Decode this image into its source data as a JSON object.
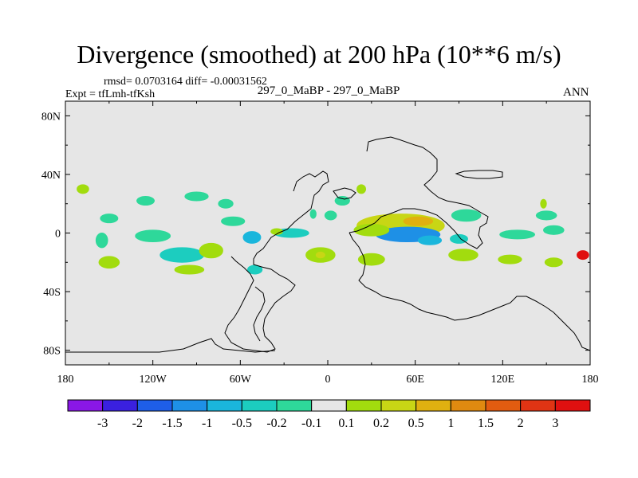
{
  "header": {
    "title": "Divergence (smoothed) at 200 hPa (10**6 m/s)",
    "stats": "rmsd= 0.0703164 diff= -0.00031562",
    "left_label": "Expt = tfLmh-tfKsh",
    "center_label": "297_0_MaBP - 297_0_MaBP",
    "right_label": "ANN"
  },
  "chart_data": {
    "type": "heatmap",
    "title": "Divergence (smoothed) at 200 hPa (10**6 m/s)",
    "projection": "cylindrical equidistant",
    "x_range": [
      -180,
      180
    ],
    "y_range": [
      -90,
      90
    ],
    "x_ticks": [
      {
        "value": -180,
        "label": "180"
      },
      {
        "value": -120,
        "label": "120W"
      },
      {
        "value": -60,
        "label": "60W"
      },
      {
        "value": 0,
        "label": "0"
      },
      {
        "value": 60,
        "label": "60E"
      },
      {
        "value": 120,
        "label": "120E"
      },
      {
        "value": 180,
        "label": "180"
      }
    ],
    "y_ticks": [
      {
        "value": 80,
        "label": "80N"
      },
      {
        "value": 40,
        "label": "40N"
      },
      {
        "value": 0,
        "label": "0"
      },
      {
        "value": -40,
        "label": "40S"
      },
      {
        "value": -80,
        "label": "80S"
      }
    ],
    "background_color": "#e6e6e6",
    "colorbar": {
      "boundaries": [
        "-3",
        "-2",
        "-1.5",
        "-1",
        "-0.5",
        "-0.2",
        "-0.1",
        "0.1",
        "0.2",
        "0.5",
        "1",
        "1.5",
        "2",
        "3"
      ],
      "colors": [
        "#8a17e6",
        "#3a20e0",
        "#1e5ee8",
        "#1e90e6",
        "#1ab6dc",
        "#1ccdbf",
        "#2ed89a",
        "#e6e6e6",
        "#a2dc0e",
        "#c8d615",
        "#e0b010",
        "#e08a10",
        "#e25c10",
        "#e03414",
        "#e01010"
      ]
    },
    "regions": [
      {
        "name": "central-indian-positive",
        "lon": 50,
        "lat": 5,
        "rlon": 30,
        "rlat": 8,
        "bin": 9
      },
      {
        "name": "indian-core-orange",
        "lon": 62,
        "lat": 8,
        "rlon": 10,
        "rlat": 3,
        "bin": 10
      },
      {
        "name": "indian-negative-core",
        "lon": 55,
        "lat": -1,
        "rlon": 22,
        "rlat": 5,
        "bin": 3
      },
      {
        "name": "indian-negative-east",
        "lon": 70,
        "lat": -5,
        "rlon": 8,
        "rlat": 3,
        "bin": 4
      },
      {
        "name": "africa-east-positive",
        "lon": 30,
        "lat": 2,
        "rlon": 12,
        "rlat": 4,
        "bin": 8
      },
      {
        "name": "east-africa-positive-south",
        "lon": -5,
        "lat": -15,
        "rlon": 10,
        "rlat": 5,
        "bin": 8
      },
      {
        "name": "africa-south-green",
        "lon": 30,
        "lat": -18,
        "rlon": 9,
        "rlat": 4,
        "bin": 8
      },
      {
        "name": "africa-orange-dot",
        "lon": -5,
        "lat": -15,
        "rlon": 3,
        "rlat": 2,
        "bin": 9
      },
      {
        "name": "atlantic-teal",
        "lon": -25,
        "lat": 0,
        "rlon": 12,
        "rlat": 3,
        "bin": 5
      },
      {
        "name": "north-africa-teal",
        "lon": 10,
        "lat": 22,
        "rlon": 5,
        "rlat": 3,
        "bin": 6
      },
      {
        "name": "mediterranean-green",
        "lon": 23,
        "lat": 30,
        "rlon": 3,
        "rlat": 3,
        "bin": 8
      },
      {
        "name": "north-indian-teal",
        "lon": 2,
        "lat": 12,
        "rlon": 4,
        "rlat": 3,
        "bin": 6
      },
      {
        "name": "pacific-west-teal",
        "lon": 95,
        "lat": 12,
        "rlon": 10,
        "rlat": 4,
        "bin": 6
      },
      {
        "name": "maritime-teal",
        "lon": 90,
        "lat": -4,
        "rlon": 6,
        "rlat": 3,
        "bin": 5
      },
      {
        "name": "indonesia-green",
        "lon": 93,
        "lat": -15,
        "rlon": 10,
        "rlat": 4,
        "bin": 8
      },
      {
        "name": "pacific-teal-1",
        "lon": 130,
        "lat": -1,
        "rlon": 12,
        "rlat": 3,
        "bin": 6
      },
      {
        "name": "pacific-teal-2",
        "lon": 150,
        "lat": 12,
        "rlon": 7,
        "rlat": 3,
        "bin": 6
      },
      {
        "name": "pacific-teal-3",
        "lon": 155,
        "lat": 2,
        "rlon": 7,
        "rlat": 3,
        "bin": 6
      },
      {
        "name": "dateline-red",
        "lon": 175,
        "lat": -15,
        "rlon": 4,
        "rlat": 3,
        "bin": 14
      },
      {
        "name": "pacific-green-se",
        "lon": 125,
        "lat": -18,
        "rlon": 8,
        "rlat": 3,
        "bin": 8
      },
      {
        "name": "pacific-green-far",
        "lon": 155,
        "lat": -20,
        "rlon": 6,
        "rlat": 3,
        "bin": 8
      },
      {
        "name": "pacific-green-top",
        "lon": 148,
        "lat": 20,
        "rlon": 2,
        "rlat": 3,
        "bin": 8
      },
      {
        "name": "east-pacific-green",
        "lon": -168,
        "lat": 30,
        "rlon": 4,
        "rlat": 3,
        "bin": 8
      },
      {
        "name": "east-pacific-teal-1",
        "lon": -150,
        "lat": 10,
        "rlon": 6,
        "rlat": 3,
        "bin": 6
      },
      {
        "name": "east-pacific-teal-2",
        "lon": -155,
        "lat": -5,
        "rlon": 4,
        "rlat": 5,
        "bin": 6
      },
      {
        "name": "east-pacific-green-2",
        "lon": -150,
        "lat": -20,
        "rlon": 7,
        "rlat": 4,
        "bin": 8
      },
      {
        "name": "east-pacific-teal-3",
        "lon": -120,
        "lat": -2,
        "rlon": 12,
        "rlat": 4,
        "bin": 6
      },
      {
        "name": "east-pacific-teal-4",
        "lon": -100,
        "lat": -15,
        "rlon": 15,
        "rlat": 5,
        "bin": 5
      },
      {
        "name": "east-pacific-green-3",
        "lon": -95,
        "lat": -25,
        "rlon": 10,
        "rlat": 3,
        "bin": 8
      },
      {
        "name": "east-pacific-green-4",
        "lon": -80,
        "lat": -12,
        "rlon": 8,
        "rlat": 5,
        "bin": 8
      },
      {
        "name": "pacific-nw-teal",
        "lon": -90,
        "lat": 25,
        "rlon": 8,
        "rlat": 3,
        "bin": 6
      },
      {
        "name": "pacific-nw-teal-2",
        "lon": -125,
        "lat": 22,
        "rlon": 6,
        "rlat": 3,
        "bin": 6
      },
      {
        "name": "pacific-nw-teal-3",
        "lon": -65,
        "lat": 8,
        "rlon": 8,
        "rlat": 3,
        "bin": 6
      },
      {
        "name": "pacific-north-teal-4",
        "lon": -70,
        "lat": 20,
        "rlon": 5,
        "rlat": 3,
        "bin": 6
      },
      {
        "name": "gulf-teal",
        "lon": -52,
        "lat": -3,
        "rlon": 6,
        "rlat": 4,
        "bin": 4
      },
      {
        "name": "brazil-teal",
        "lon": -50,
        "lat": -25,
        "rlon": 5,
        "rlat": 3,
        "bin": 5
      },
      {
        "name": "africa-teal-west",
        "lon": -10,
        "lat": 13,
        "rlon": 2,
        "rlat": 3,
        "bin": 6
      },
      {
        "name": "tropical-atl-green",
        "lon": -35,
        "lat": 1,
        "rlon": 4,
        "rlat": 2,
        "bin": 8
      }
    ]
  }
}
